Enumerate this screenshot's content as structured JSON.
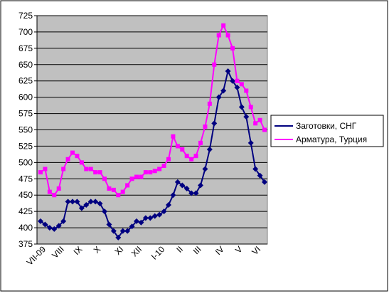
{
  "chart_data": {
    "type": "line",
    "categories": [
      "VII-09",
      null,
      null,
      null,
      "VIII",
      null,
      null,
      null,
      "IX",
      null,
      null,
      null,
      "X",
      null,
      null,
      null,
      null,
      "XI",
      null,
      null,
      null,
      "XII",
      null,
      null,
      null,
      null,
      "I-10",
      null,
      null,
      null,
      "II",
      null,
      null,
      null,
      "III",
      null,
      null,
      null,
      null,
      "IV",
      null,
      null,
      null,
      "V",
      null,
      null,
      null,
      "VI",
      null,
      null
    ],
    "series": [
      {
        "name": "Заготовки, СНГ",
        "color": "#000080",
        "marker": "diamond",
        "values": [
          410,
          405,
          400,
          398,
          403,
          410,
          440,
          440,
          440,
          430,
          435,
          440,
          440,
          437,
          425,
          405,
          395,
          385,
          395,
          395,
          402,
          410,
          408,
          415,
          415,
          418,
          420,
          425,
          435,
          450,
          470,
          465,
          460,
          453,
          453,
          465,
          490,
          520,
          560,
          600,
          610,
          640,
          625,
          615,
          585,
          570,
          530,
          490,
          480,
          470
        ]
      },
      {
        "name": "Арматура, Турция",
        "color": "#ff00ff",
        "marker": "square",
        "values": [
          485,
          490,
          455,
          450,
          460,
          490,
          505,
          515,
          510,
          500,
          490,
          490,
          485,
          485,
          475,
          460,
          458,
          450,
          455,
          465,
          475,
          478,
          478,
          485,
          485,
          487,
          490,
          495,
          505,
          540,
          525,
          520,
          510,
          505,
          510,
          530,
          555,
          590,
          650,
          695,
          710,
          695,
          675,
          625,
          620,
          610,
          585,
          560,
          565,
          550
        ]
      }
    ],
    "ylim": [
      375,
      725
    ],
    "yticks": [
      375,
      400,
      425,
      450,
      475,
      500,
      525,
      550,
      575,
      600,
      625,
      650,
      675,
      700,
      725
    ],
    "grid": true
  }
}
